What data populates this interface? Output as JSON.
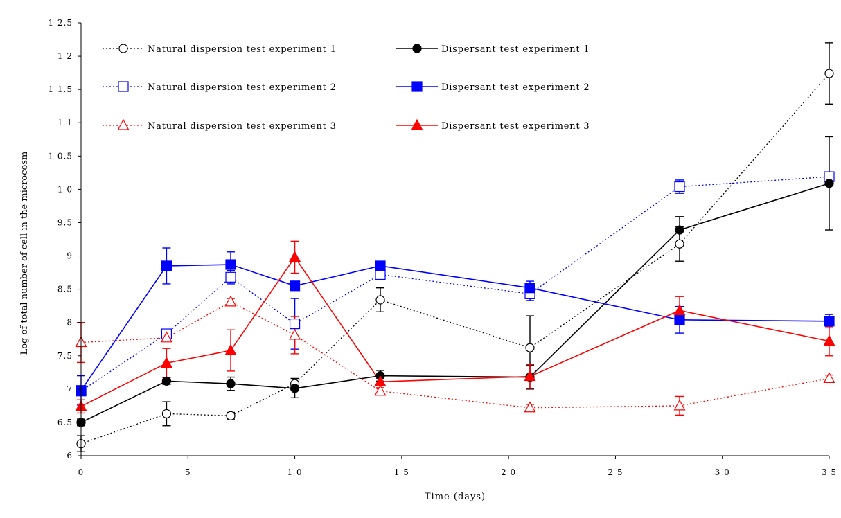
{
  "chart_data": {
    "type": "line",
    "title": "",
    "xlabel": "Time (days)",
    "ylabel": "Log of total number of cell in the microcosm",
    "xlim": [
      0,
      35
    ],
    "ylim": [
      6,
      12.5
    ],
    "xticks": [
      0,
      5,
      10,
      15,
      20,
      25,
      30,
      35
    ],
    "xtick_labels": [
      "0",
      "5",
      "1 0",
      "1 5",
      "2 0",
      "2 5",
      "3 0",
      "3 5"
    ],
    "yticks": [
      6,
      6.5,
      7,
      7.5,
      8,
      8.5,
      9,
      9.5,
      10,
      10.5,
      11,
      11.5,
      12,
      12.5
    ],
    "ytick_labels": [
      "6",
      "6.5",
      "7",
      "7.5",
      "8",
      "8.5",
      "9",
      "9.5",
      "1 0",
      "1 0.5",
      "1 1",
      "1 1.5",
      "1 2",
      "1 2.5"
    ],
    "grid": false,
    "legend_position": "top-left",
    "series": [
      {
        "name": "Natural dispersion test experiment 1",
        "color": "#000000",
        "dash": "dotted",
        "marker": "circle",
        "filled": false,
        "x": [
          0,
          4,
          7,
          10,
          14,
          21,
          28,
          35
        ],
        "y": [
          6.18,
          6.63,
          6.6,
          7.08,
          8.34,
          7.62,
          9.18,
          11.74
        ],
        "err": [
          0.12,
          0.18,
          0.05,
          0.08,
          0.18,
          0.48,
          0.26,
          0.46
        ]
      },
      {
        "name": "Natural dispersion test experiment 2",
        "color": "#0000ff",
        "dash": "dotted",
        "marker": "square",
        "filled": false,
        "x": [
          0,
          4,
          7,
          10,
          14,
          21,
          28,
          35
        ],
        "y": [
          6.97,
          7.83,
          8.68,
          7.98,
          8.72,
          8.43,
          10.04,
          10.19
        ],
        "err": [
          0.05,
          0.05,
          0.1,
          0.38,
          0.05,
          0.1,
          0.1,
          0.05
        ]
      },
      {
        "name": "Natural dispersion test experiment 3",
        "color": "#ff0000",
        "dash": "dotted",
        "marker": "triangle",
        "filled": false,
        "x": [
          0,
          4,
          7,
          10,
          14,
          21,
          28,
          35
        ],
        "y": [
          7.7,
          7.77,
          8.31,
          7.81,
          6.97,
          6.72,
          6.75,
          7.16
        ],
        "err": [
          0.3,
          0.05,
          0.05,
          0.28,
          0.05,
          0.05,
          0.14,
          0.05
        ]
      },
      {
        "name": "Dispersant test experiment 1",
        "color": "#000000",
        "dash": "solid",
        "marker": "circle",
        "filled": true,
        "x": [
          0,
          4,
          7,
          10,
          14,
          21,
          28,
          35
        ],
        "y": [
          6.5,
          7.12,
          7.08,
          7.01,
          7.2,
          7.18,
          9.39,
          10.09
        ],
        "err": [
          0.05,
          0.05,
          0.1,
          0.14,
          0.08,
          0.18,
          0.2,
          0.7
        ]
      },
      {
        "name": "Dispersant test experiment 2",
        "color": "#0000ff",
        "dash": "solid",
        "marker": "square",
        "filled": true,
        "x": [
          0,
          4,
          7,
          10,
          14,
          21,
          28,
          35
        ],
        "y": [
          6.98,
          8.85,
          8.87,
          8.55,
          8.85,
          8.52,
          8.04,
          8.02
        ],
        "err": [
          0.22,
          0.27,
          0.19,
          0.05,
          0.05,
          0.1,
          0.2,
          0.1
        ]
      },
      {
        "name": "Dispersant test experiment 3",
        "color": "#ff0000",
        "dash": "solid",
        "marker": "triangle",
        "filled": true,
        "x": [
          0,
          4,
          7,
          10,
          14,
          21,
          28,
          35
        ],
        "y": [
          6.74,
          7.39,
          7.58,
          8.98,
          7.11,
          7.19,
          8.18,
          7.72
        ],
        "err": [
          0.1,
          0.22,
          0.31,
          0.24,
          0.05,
          0.18,
          0.21,
          0.22
        ]
      }
    ],
    "legend_order": [
      0,
      3,
      1,
      4,
      2,
      5
    ]
  }
}
